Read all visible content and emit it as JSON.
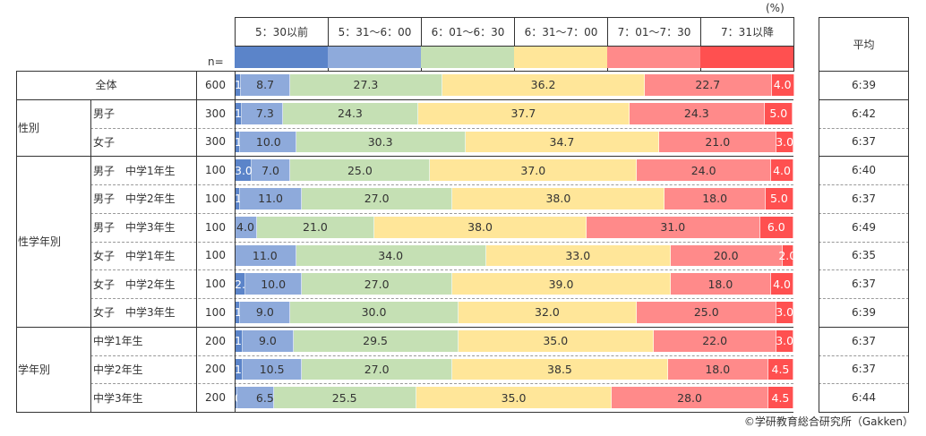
{
  "unit_label": "(%)",
  "n_label": "n=",
  "avg_header": "平均",
  "copyright": "©学研教育総合研究所（Gakken）",
  "chart_data": {
    "type": "bar",
    "orientation": "horizontal-stacked-100",
    "xlim": [
      0,
      100
    ],
    "legend_position": "top",
    "categories_legend": [
      "5：30以前",
      "5：31〜6：00",
      "6：01〜6：30",
      "6：31〜7：00",
      "7：01〜7：30",
      "7：31以降"
    ],
    "colors": [
      "#5b84c9",
      "#8eaadb",
      "#c5e0b4",
      "#ffe699",
      "#ff8a8a",
      "#ff5050"
    ],
    "groups": [
      {
        "label": "",
        "rows": [
          {
            "label": "全体",
            "n": "600",
            "values": [
              1.2,
              8.7,
              27.3,
              36.2,
              22.7,
              4.0
            ],
            "avg": "6:39"
          }
        ]
      },
      {
        "label": "性別",
        "rows": [
          {
            "label": "男子",
            "n": "300",
            "values": [
              1.3,
              7.3,
              24.3,
              37.7,
              24.3,
              5.0
            ],
            "avg": "6:42"
          },
          {
            "label": "女子",
            "n": "300",
            "values": [
              1.0,
              10.0,
              30.3,
              34.7,
              21.0,
              3.0
            ],
            "avg": "6:37"
          }
        ]
      },
      {
        "label": "性学年別",
        "rows": [
          {
            "label": "男子　中学1年生",
            "n": "100",
            "values": [
              3.0,
              7.0,
              25.0,
              37.0,
              24.0,
              4.0
            ],
            "avg": "6:40"
          },
          {
            "label": "男子　中学2年生",
            "n": "100",
            "values": [
              1.0,
              11.0,
              27.0,
              38.0,
              18.0,
              5.0
            ],
            "avg": "6:37"
          },
          {
            "label": "男子　中学3年生",
            "n": "100",
            "values": [
              0,
              4.0,
              21.0,
              38.0,
              31.0,
              6.0
            ],
            "avg": "6:49"
          },
          {
            "label": "女子　中学1年生",
            "n": "100",
            "values": [
              0,
              11.0,
              34.0,
              33.0,
              20.0,
              2.0
            ],
            "avg": "6:35"
          },
          {
            "label": "女子　中学2年生",
            "n": "100",
            "values": [
              2.0,
              10.0,
              27.0,
              39.0,
              18.0,
              4.0
            ],
            "avg": "6:37"
          },
          {
            "label": "女子　中学3年生",
            "n": "100",
            "values": [
              1.0,
              9.0,
              30.0,
              32.0,
              25.0,
              3.0
            ],
            "avg": "6:39"
          }
        ]
      },
      {
        "label": "学年別",
        "rows": [
          {
            "label": "中学1年生",
            "n": "200",
            "values": [
              1.5,
              9.0,
              29.5,
              35.0,
              22.0,
              3.0
            ],
            "avg": "6:37"
          },
          {
            "label": "中学2年生",
            "n": "200",
            "values": [
              1.5,
              10.5,
              27.0,
              38.5,
              18.0,
              4.5
            ],
            "avg": "6:37"
          },
          {
            "label": "中学3年生",
            "n": "200",
            "values": [
              0.5,
              6.5,
              25.5,
              35.0,
              28.0,
              4.5
            ],
            "avg": "6:44"
          }
        ]
      }
    ]
  }
}
